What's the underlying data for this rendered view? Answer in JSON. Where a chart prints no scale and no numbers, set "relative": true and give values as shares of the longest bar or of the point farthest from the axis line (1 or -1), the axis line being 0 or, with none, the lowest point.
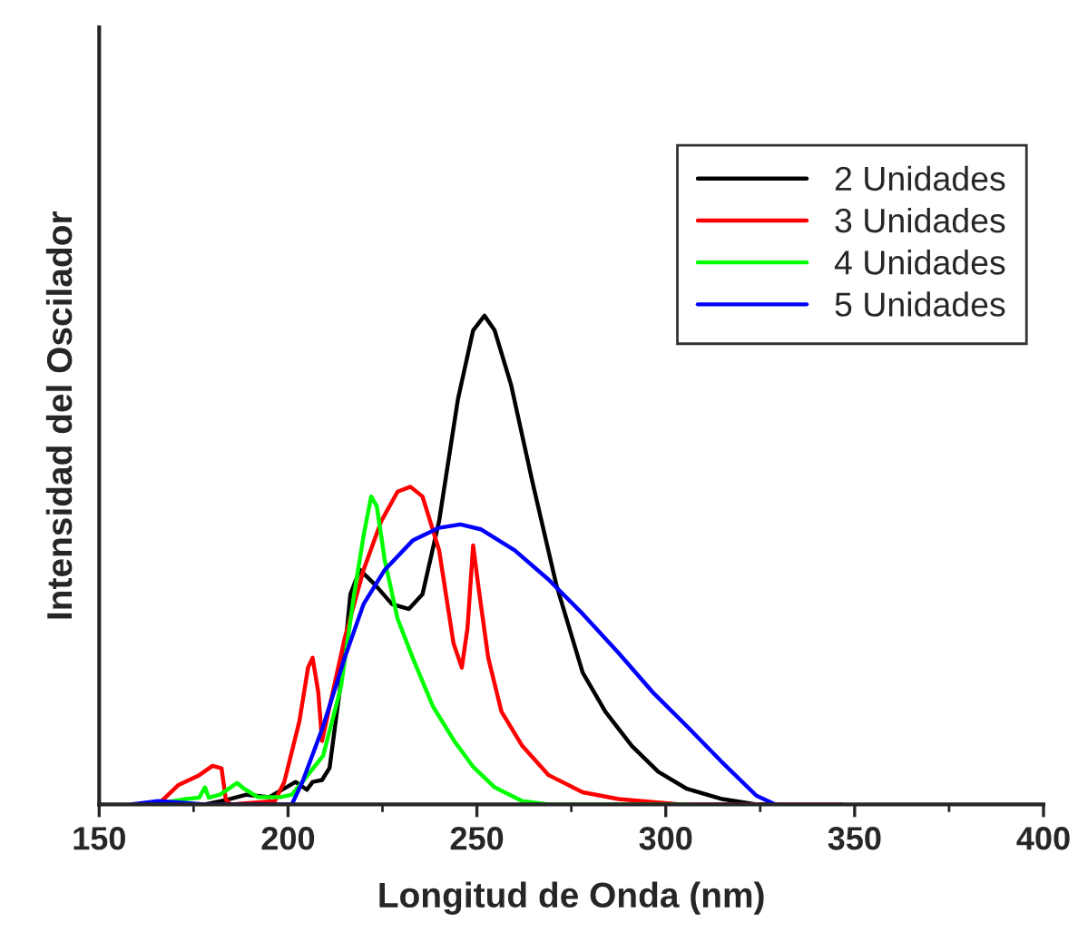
{
  "chart_data": {
    "type": "line",
    "relative": true,
    "xlabel": "Longitud de Onda (nm)",
    "ylabel": "Intensidad del Oscilador",
    "xlim": [
      150,
      400
    ],
    "xticks": [
      150,
      200,
      250,
      300,
      350,
      400
    ],
    "grid": false,
    "legend": "top right",
    "marker": "none",
    "line_style": "solid",
    "series": [
      {
        "name": "2 Unidades",
        "color": "#000000",
        "x": [
          178,
          184,
          189,
          195,
          202,
          205,
          206.5,
          209,
          211,
          215,
          216.5,
          219,
          223,
          227.5,
          232,
          235.6,
          240,
          245,
          249,
          252,
          254.7,
          259,
          264.7,
          271,
          278,
          284,
          291,
          298,
          305.6,
          315,
          324,
          329
        ],
        "values": [
          0,
          0.01,
          0.02,
          0.015,
          0.046,
          0.03,
          0.046,
          0.05,
          0.075,
          0.31,
          0.43,
          0.48,
          0.45,
          0.41,
          0.4,
          0.43,
          0.58,
          0.83,
          0.97,
          1.0,
          0.97,
          0.86,
          0.66,
          0.45,
          0.27,
          0.19,
          0.12,
          0.067,
          0.032,
          0.011,
          0,
          0
        ]
      },
      {
        "name": "3 Unidades",
        "color": "#ff0000",
        "x": [
          165.6,
          171,
          176.5,
          180,
          182.4,
          183.5,
          184.7,
          196.5,
          199,
          203,
          205.3,
          206.5,
          208,
          209,
          211,
          215,
          220,
          224.7,
          229,
          232.4,
          235.6,
          240,
          243.8,
          246,
          247.5,
          249,
          250.5,
          253,
          256.5,
          262,
          269,
          278,
          287.5,
          304,
          346.5
        ],
        "values": [
          0,
          0.04,
          0.06,
          0.079,
          0.074,
          0.011,
          0,
          0.007,
          0.046,
          0.17,
          0.28,
          0.3,
          0.23,
          0.13,
          0.2,
          0.34,
          0.48,
          0.58,
          0.64,
          0.65,
          0.63,
          0.52,
          0.33,
          0.28,
          0.36,
          0.53,
          0.44,
          0.3,
          0.19,
          0.12,
          0.06,
          0.025,
          0.011,
          0,
          0
        ]
      },
      {
        "name": "4 Unidades",
        "color": "#00ff00",
        "x": [
          160,
          167.5,
          173,
          176.5,
          178,
          179,
          182,
          186.5,
          188.4,
          192,
          198,
          201,
          203.8,
          209.3,
          214,
          217.5,
          220,
          222,
          223.5,
          225.6,
          229,
          233,
          238.4,
          244,
          249,
          254.7,
          262,
          269,
          305.6
        ],
        "values": [
          0,
          0.004,
          0.011,
          0.014,
          0.035,
          0.014,
          0.02,
          0.044,
          0.032,
          0.015,
          0.015,
          0.02,
          0.046,
          0.1,
          0.24,
          0.43,
          0.55,
          0.63,
          0.61,
          0.5,
          0.38,
          0.3,
          0.2,
          0.13,
          0.077,
          0.035,
          0.007,
          0,
          0
        ]
      },
      {
        "name": "5 Unidades",
        "color": "#0000ff",
        "x": [
          158.4,
          165.6,
          171,
          178,
          201,
          203.8,
          209.3,
          215,
          220,
          225.6,
          233,
          240,
          245.6,
          251,
          260,
          269,
          278,
          287.5,
          296.5,
          305.6,
          314.7,
          324,
          329
        ],
        "values": [
          0,
          0.007,
          0.004,
          0,
          0,
          0.046,
          0.16,
          0.3,
          0.41,
          0.48,
          0.54,
          0.566,
          0.573,
          0.563,
          0.52,
          0.46,
          0.39,
          0.31,
          0.23,
          0.16,
          0.088,
          0.018,
          0
        ]
      }
    ]
  }
}
